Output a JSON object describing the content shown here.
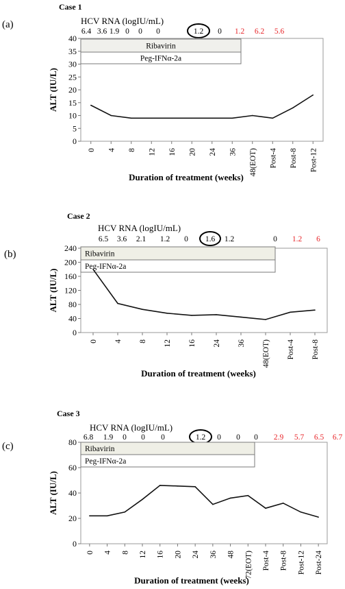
{
  "chart_data": [
    {
      "type": "line",
      "panel_label": "(a)",
      "case_title": "Case 1",
      "hcv_title": "HCV RNA (logIU/mL)",
      "hcv_values": [
        "6.4",
        "3.6",
        "1.9",
        "0",
        "0",
        "0",
        "1.2",
        "0",
        "1.2",
        "6.2",
        "5.6"
      ],
      "hcv_red_from": 8,
      "hcv_circled_index": 6,
      "xlabel": "Duration of treatment (weeks)",
      "ylabel": "ALT (IU/L)",
      "ylim": [
        0,
        40
      ],
      "yticks": [
        0,
        5,
        10,
        15,
        20,
        25,
        30,
        35,
        40
      ],
      "categories": [
        "0",
        "4",
        "8",
        "12",
        "16",
        "20",
        "24",
        "36",
        "48(EOT)",
        "Post-4",
        "Post-8",
        "Post-12"
      ],
      "values": [
        14,
        10,
        9,
        9,
        9,
        9,
        9,
        9,
        10,
        9,
        13,
        18
      ],
      "treatment_bars": [
        "Ribavirin",
        "Peg-IFNα-2a"
      ]
    },
    {
      "type": "line",
      "panel_label": "(b)",
      "case_title": "Case 2",
      "hcv_title": "HCV RNA (logIU/mL)",
      "hcv_values": [
        "6.5",
        "3.6",
        "2.1",
        "1.2",
        "0",
        "1.6",
        "1.2",
        "0",
        "1.2",
        "6"
      ],
      "hcv_red_from": 8,
      "hcv_circled_index": 5,
      "xlabel": "Duration of treatment (weeks)",
      "ylabel": "ALT (IU/L)",
      "ylim": [
        0,
        240
      ],
      "yticks": [
        0,
        40,
        80,
        120,
        160,
        200,
        240
      ],
      "categories": [
        "0",
        "4",
        "8",
        "12",
        "16",
        "24",
        "36",
        "48(EOT)",
        "Post-4",
        "Post-8"
      ],
      "values": [
        180,
        83,
        66,
        55,
        49,
        51,
        44,
        37,
        58,
        64
      ],
      "treatment_bars": [
        "Ribavirin",
        "Peg-IFNα-2a"
      ]
    },
    {
      "type": "line",
      "panel_label": "(c)",
      "case_title": "Case 3",
      "hcv_title": "HCV RNA (logIU/mL)",
      "hcv_values": [
        "6.8",
        "1.9",
        "0",
        "0",
        "0",
        "1.2",
        "0",
        "0",
        "0",
        "2.9",
        "5.7",
        "6.5",
        "6.7"
      ],
      "hcv_red_from": 9,
      "hcv_circled_index": 5,
      "xlabel": "Duration of treatment (weeks)",
      "ylabel": "ALT (IU/L)",
      "ylim": [
        0,
        80
      ],
      "yticks": [
        0,
        20,
        40,
        60,
        80
      ],
      "categories": [
        "0",
        "4",
        "8",
        "12",
        "16",
        "20",
        "24",
        "36",
        "48",
        "72(EOT)",
        "Post-4",
        "Post-8",
        "Post-12",
        "Post-24"
      ],
      "values": [
        22,
        22,
        25,
        35,
        46,
        45.5,
        45,
        31,
        36,
        38,
        28,
        32,
        25,
        21
      ],
      "treatment_bars": [
        "Ribavirin",
        "Peg-IFNα-2a"
      ]
    }
  ]
}
